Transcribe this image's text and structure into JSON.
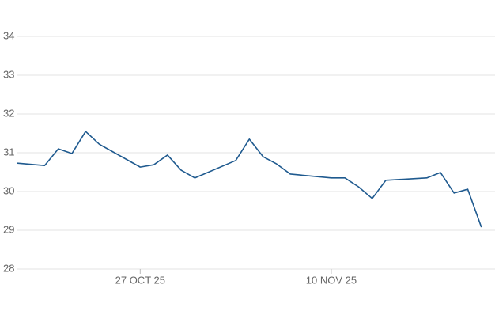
{
  "chart_data": {
    "type": "line",
    "x": [
      "2025-10-18",
      "2025-10-20",
      "2025-10-21",
      "2025-10-22",
      "2025-10-23",
      "2025-10-24",
      "2025-10-27",
      "2025-10-28",
      "2025-10-29",
      "2025-10-30",
      "2025-10-31",
      "2025-11-03",
      "2025-11-04",
      "2025-11-05",
      "2025-11-06",
      "2025-11-07",
      "2025-11-10",
      "2025-11-11",
      "2025-11-12",
      "2025-11-13",
      "2025-11-14",
      "2025-11-17",
      "2025-11-18",
      "2025-11-19",
      "2025-11-20",
      "2025-11-21"
    ],
    "series": [
      {
        "color": "#1f5a8f",
        "values": [
          30.73,
          30.67,
          31.1,
          30.98,
          31.55,
          31.22,
          30.63,
          30.69,
          30.94,
          30.55,
          30.35,
          30.8,
          31.35,
          30.9,
          30.71,
          30.45,
          30.35,
          30.35,
          30.12,
          29.82,
          30.29,
          30.35,
          30.49,
          29.96,
          30.06,
          29.08
        ]
      }
    ],
    "xlim": [
      "2025-10-18",
      "2025-11-22"
    ],
    "xticks": [
      {
        "value": "2025-10-27",
        "label": "27 OCT 25"
      },
      {
        "value": "2025-11-10",
        "label": "10 NOV 25"
      }
    ],
    "ylim": [
      28,
      34
    ],
    "yticks": [
      28,
      29,
      30,
      31,
      32,
      33,
      34
    ],
    "grid": true
  }
}
